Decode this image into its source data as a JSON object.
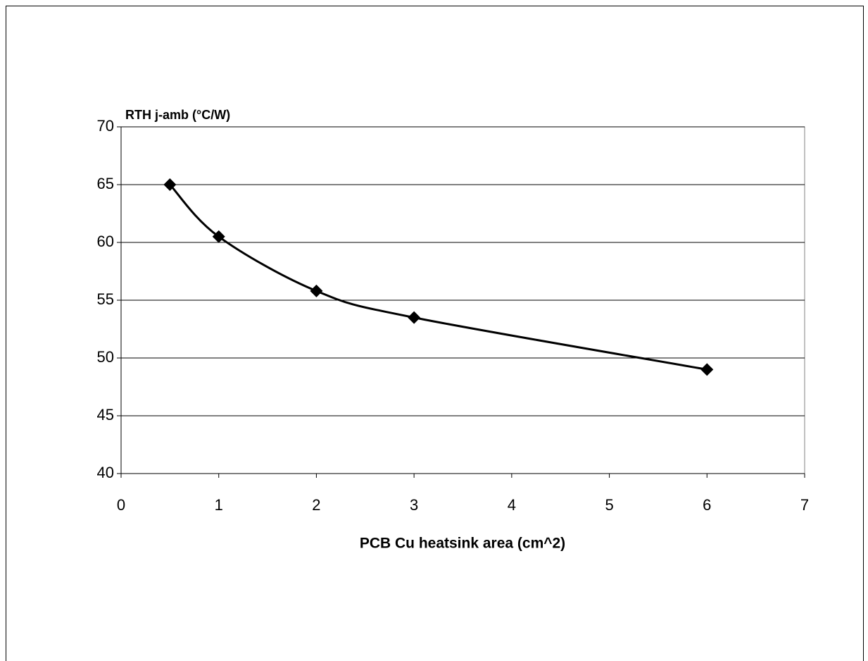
{
  "chart_data": {
    "type": "line",
    "y_label": "RTH j-amb (°C/W)",
    "x_label": "PCB Cu heatsink area (cm^2)",
    "x": [
      0.5,
      1,
      2,
      3,
      6
    ],
    "series": [
      {
        "color": "#000000",
        "values": [
          65,
          60.5,
          55.8,
          53.5,
          49
        ]
      }
    ],
    "xlim": [
      0,
      7
    ],
    "xticks": [
      0,
      1,
      2,
      3,
      4,
      5,
      6,
      7
    ],
    "ylim": [
      40,
      70
    ],
    "yticks": [
      40,
      45,
      50,
      55,
      60,
      65,
      70
    ],
    "grid": true,
    "smooth": true,
    "marker": "diamond"
  }
}
